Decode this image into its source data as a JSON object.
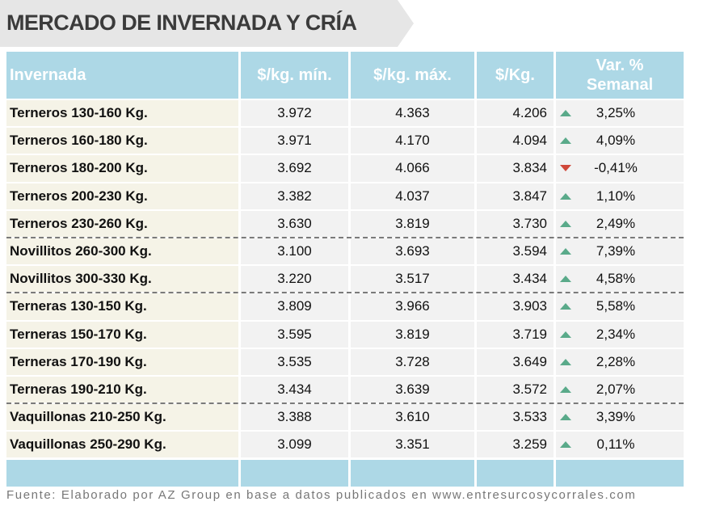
{
  "title": "MERCADO DE INVERNADA Y CRÍA",
  "colors": {
    "header_bg": "#add8e6",
    "up": "#5aaa8a",
    "down": "#d0483a"
  },
  "table": {
    "headers": {
      "category": "Invernada",
      "min": "$/kg. mín.",
      "max": "$/kg. máx.",
      "avg": "$/Kg.",
      "var_line1": "Var. %",
      "var_line2": "Semanal"
    },
    "rows": [
      {
        "name": "Terneros 130-160 Kg.",
        "min": "3.972",
        "max": "4.363",
        "avg": "4.206",
        "trend": "up",
        "var": "3,25%"
      },
      {
        "name": "Terneros 160-180 Kg.",
        "min": "3.971",
        "max": "4.170",
        "avg": "4.094",
        "trend": "up",
        "var": "4,09%"
      },
      {
        "name": "Terneros 180-200 Kg.",
        "min": "3.692",
        "max": "4.066",
        "avg": "3.834",
        "trend": "down",
        "var": "-0,41%"
      },
      {
        "name": "Terneros 200-230 Kg.",
        "min": "3.382",
        "max": "4.037",
        "avg": "3.847",
        "trend": "up",
        "var": "1,10%"
      },
      {
        "name": "Terneros 230-260 Kg.",
        "min": "3.630",
        "max": "3.819",
        "avg": "3.730",
        "trend": "up",
        "var": "2,49%"
      },
      {
        "name": "Novillitos 260-300 Kg.",
        "min": "3.100",
        "max": "3.693",
        "avg": "3.594",
        "trend": "up",
        "var": "7,39%"
      },
      {
        "name": "Novillitos 300-330 Kg.",
        "min": "3.220",
        "max": "3.517",
        "avg": "3.434",
        "trend": "up",
        "var": "4,58%"
      },
      {
        "name": "Terneras 130-150 Kg.",
        "min": "3.809",
        "max": "3.966",
        "avg": "3.903",
        "trend": "up",
        "var": "5,58%"
      },
      {
        "name": "Terneras 150-170 Kg.",
        "min": "3.595",
        "max": "3.819",
        "avg": "3.719",
        "trend": "up",
        "var": "2,34%"
      },
      {
        "name": "Terneras 170-190 Kg.",
        "min": "3.535",
        "max": "3.728",
        "avg": "3.649",
        "trend": "up",
        "var": "2,28%"
      },
      {
        "name": "Terneras 190-210 Kg.",
        "min": "3.434",
        "max": "3.639",
        "avg": "3.572",
        "trend": "up",
        "var": "2,07%"
      },
      {
        "name": "Vaquillonas 210-250 Kg.",
        "min": "3.388",
        "max": "3.610",
        "avg": "3.533",
        "trend": "up",
        "var": "3,39%"
      },
      {
        "name": "Vaquillonas 250-290 Kg.",
        "min": "3.099",
        "max": "3.351",
        "avg": "3.259",
        "trend": "up",
        "var": "0,11%"
      }
    ]
  },
  "source": "Fuente: Elaborado por AZ Group en base a datos publicados en www.entresurcosycorrales.com"
}
